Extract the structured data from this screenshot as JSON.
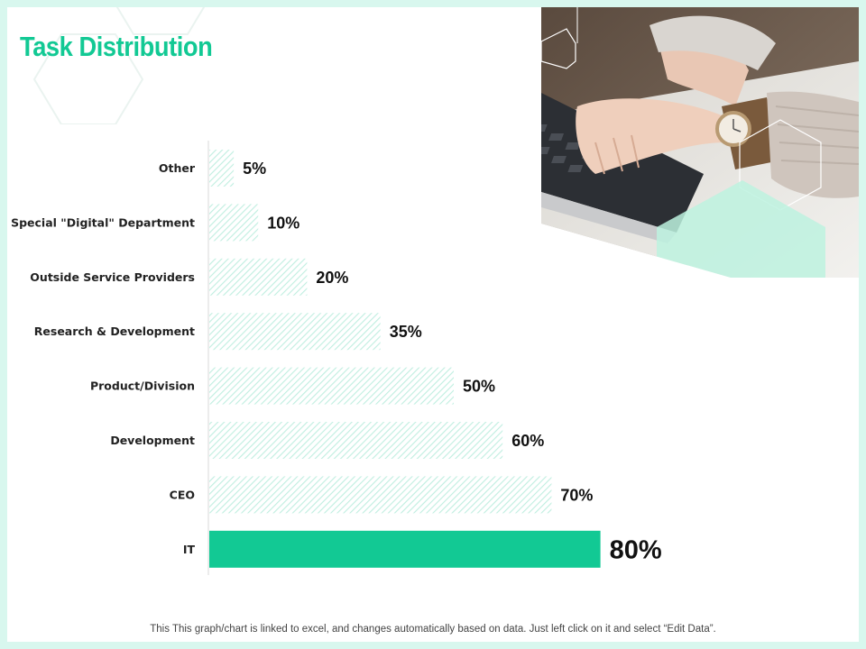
{
  "slide": {
    "title": "Task Distribution",
    "footer_note": "This This graph/chart is linked to excel, and changes automatically based on data. Just left click on it and select “Edit Data”."
  },
  "colors": {
    "accent": "#12c994",
    "bar_pattern": "#bfeee0",
    "background_border": "#d8f7ee"
  },
  "chart_data": {
    "type": "bar",
    "orientation": "horizontal",
    "categories": [
      "Other",
      "Special \"Digital\" Department",
      "Outside Service Providers",
      "Research & Development",
      "Product/Division",
      "Development",
      "CEO",
      "IT"
    ],
    "values": [
      5,
      10,
      20,
      35,
      50,
      60,
      70,
      80
    ],
    "value_labels": [
      "5%",
      "10%",
      "20%",
      "35%",
      "50%",
      "60%",
      "70%",
      "80%"
    ],
    "unit": "%",
    "highlighted_category": "IT",
    "xlim": [
      0,
      100
    ],
    "grid": false,
    "legend": "none"
  }
}
